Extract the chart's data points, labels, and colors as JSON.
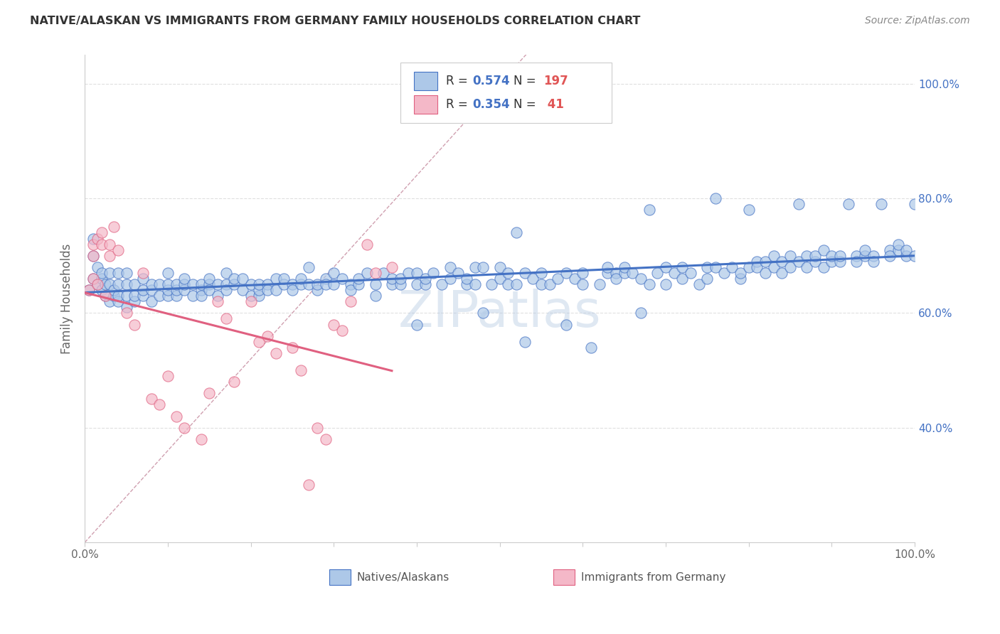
{
  "title": "NATIVE/ALASKAN VS IMMIGRANTS FROM GERMANY FAMILY HOUSEHOLDS CORRELATION CHART",
  "source": "Source: ZipAtlas.com",
  "ylabel": "Family Households",
  "xlim": [
    0,
    1
  ],
  "ylim": [
    0.2,
    1.05
  ],
  "legend_blue_R": "0.574",
  "legend_blue_N": "197",
  "legend_pink_R": "0.354",
  "legend_pink_N": " 41",
  "legend_label_blue": "Natives/Alaskans",
  "legend_label_pink": "Immigrants from Germany",
  "watermark": "ZIPatlas",
  "blue_color": "#adc8e8",
  "pink_color": "#f4b8c8",
  "line_blue": "#4472c4",
  "line_pink": "#e06080",
  "diag_color": "#d0a0b0",
  "grid_color": "#e0e0e0",
  "yticks": [
    0.4,
    0.6,
    0.8,
    1.0
  ],
  "ytick_labels": [
    "40.0%",
    "60.0%",
    "80.0%",
    "100.0%"
  ],
  "xticks": [
    0.0,
    0.1,
    0.2,
    0.3,
    0.4,
    0.5,
    0.6,
    0.7,
    0.8,
    0.9,
    1.0
  ],
  "xtick_labels": [
    "0.0%",
    "",
    "",
    "",
    "",
    "",
    "",
    "",
    "",
    "",
    "100.0%"
  ],
  "blue_scatter": [
    [
      0.005,
      0.64
    ],
    [
      0.01,
      0.66
    ],
    [
      0.01,
      0.7
    ],
    [
      0.01,
      0.73
    ],
    [
      0.015,
      0.65
    ],
    [
      0.015,
      0.68
    ],
    [
      0.02,
      0.64
    ],
    [
      0.02,
      0.66
    ],
    [
      0.02,
      0.67
    ],
    [
      0.025,
      0.63
    ],
    [
      0.025,
      0.65
    ],
    [
      0.03,
      0.62
    ],
    [
      0.03,
      0.65
    ],
    [
      0.03,
      0.67
    ],
    [
      0.035,
      0.63
    ],
    [
      0.035,
      0.64
    ],
    [
      0.04,
      0.62
    ],
    [
      0.04,
      0.63
    ],
    [
      0.04,
      0.65
    ],
    [
      0.04,
      0.67
    ],
    [
      0.05,
      0.61
    ],
    [
      0.05,
      0.63
    ],
    [
      0.05,
      0.65
    ],
    [
      0.05,
      0.67
    ],
    [
      0.06,
      0.62
    ],
    [
      0.06,
      0.63
    ],
    [
      0.06,
      0.65
    ],
    [
      0.07,
      0.63
    ],
    [
      0.07,
      0.64
    ],
    [
      0.07,
      0.66
    ],
    [
      0.08,
      0.62
    ],
    [
      0.08,
      0.64
    ],
    [
      0.08,
      0.65
    ],
    [
      0.09,
      0.63
    ],
    [
      0.09,
      0.65
    ],
    [
      0.1,
      0.63
    ],
    [
      0.1,
      0.64
    ],
    [
      0.1,
      0.65
    ],
    [
      0.1,
      0.67
    ],
    [
      0.11,
      0.63
    ],
    [
      0.11,
      0.64
    ],
    [
      0.11,
      0.65
    ],
    [
      0.12,
      0.64
    ],
    [
      0.12,
      0.65
    ],
    [
      0.12,
      0.66
    ],
    [
      0.13,
      0.63
    ],
    [
      0.13,
      0.65
    ],
    [
      0.14,
      0.64
    ],
    [
      0.14,
      0.65
    ],
    [
      0.14,
      0.63
    ],
    [
      0.15,
      0.65
    ],
    [
      0.15,
      0.66
    ],
    [
      0.15,
      0.64
    ],
    [
      0.16,
      0.65
    ],
    [
      0.16,
      0.63
    ],
    [
      0.17,
      0.65
    ],
    [
      0.17,
      0.67
    ],
    [
      0.17,
      0.64
    ],
    [
      0.18,
      0.65
    ],
    [
      0.18,
      0.66
    ],
    [
      0.19,
      0.64
    ],
    [
      0.19,
      0.66
    ],
    [
      0.2,
      0.63
    ],
    [
      0.2,
      0.65
    ],
    [
      0.21,
      0.63
    ],
    [
      0.21,
      0.64
    ],
    [
      0.21,
      0.65
    ],
    [
      0.22,
      0.65
    ],
    [
      0.22,
      0.64
    ],
    [
      0.23,
      0.66
    ],
    [
      0.23,
      0.64
    ],
    [
      0.24,
      0.65
    ],
    [
      0.24,
      0.66
    ],
    [
      0.25,
      0.65
    ],
    [
      0.25,
      0.64
    ],
    [
      0.26,
      0.65
    ],
    [
      0.26,
      0.66
    ],
    [
      0.27,
      0.68
    ],
    [
      0.27,
      0.65
    ],
    [
      0.28,
      0.64
    ],
    [
      0.28,
      0.65
    ],
    [
      0.29,
      0.66
    ],
    [
      0.29,
      0.65
    ],
    [
      0.3,
      0.65
    ],
    [
      0.3,
      0.67
    ],
    [
      0.31,
      0.66
    ],
    [
      0.32,
      0.65
    ],
    [
      0.32,
      0.64
    ],
    [
      0.33,
      0.65
    ],
    [
      0.33,
      0.66
    ],
    [
      0.34,
      0.67
    ],
    [
      0.35,
      0.63
    ],
    [
      0.35,
      0.65
    ],
    [
      0.36,
      0.67
    ],
    [
      0.37,
      0.65
    ],
    [
      0.37,
      0.66
    ],
    [
      0.38,
      0.65
    ],
    [
      0.38,
      0.66
    ],
    [
      0.39,
      0.67
    ],
    [
      0.4,
      0.58
    ],
    [
      0.4,
      0.65
    ],
    [
      0.4,
      0.67
    ],
    [
      0.41,
      0.65
    ],
    [
      0.41,
      0.66
    ],
    [
      0.42,
      0.67
    ],
    [
      0.43,
      0.65
    ],
    [
      0.44,
      0.66
    ],
    [
      0.44,
      0.68
    ],
    [
      0.45,
      0.67
    ],
    [
      0.46,
      0.65
    ],
    [
      0.46,
      0.66
    ],
    [
      0.47,
      0.68
    ],
    [
      0.47,
      0.65
    ],
    [
      0.48,
      0.6
    ],
    [
      0.48,
      0.68
    ],
    [
      0.49,
      0.65
    ],
    [
      0.5,
      0.66
    ],
    [
      0.5,
      0.68
    ],
    [
      0.51,
      0.67
    ],
    [
      0.51,
      0.65
    ],
    [
      0.52,
      0.74
    ],
    [
      0.52,
      0.65
    ],
    [
      0.53,
      0.55
    ],
    [
      0.53,
      0.67
    ],
    [
      0.54,
      0.66
    ],
    [
      0.55,
      0.65
    ],
    [
      0.55,
      0.67
    ],
    [
      0.56,
      0.65
    ],
    [
      0.57,
      0.66
    ],
    [
      0.58,
      0.58
    ],
    [
      0.58,
      0.67
    ],
    [
      0.59,
      0.66
    ],
    [
      0.6,
      0.65
    ],
    [
      0.6,
      0.67
    ],
    [
      0.61,
      0.54
    ],
    [
      0.62,
      0.65
    ],
    [
      0.63,
      0.67
    ],
    [
      0.63,
      0.68
    ],
    [
      0.64,
      0.67
    ],
    [
      0.64,
      0.66
    ],
    [
      0.65,
      0.67
    ],
    [
      0.65,
      0.68
    ],
    [
      0.66,
      0.67
    ],
    [
      0.67,
      0.66
    ],
    [
      0.67,
      0.6
    ],
    [
      0.68,
      0.78
    ],
    [
      0.68,
      0.65
    ],
    [
      0.69,
      0.67
    ],
    [
      0.7,
      0.68
    ],
    [
      0.7,
      0.65
    ],
    [
      0.71,
      0.67
    ],
    [
      0.72,
      0.66
    ],
    [
      0.72,
      0.68
    ],
    [
      0.73,
      0.67
    ],
    [
      0.74,
      0.65
    ],
    [
      0.75,
      0.68
    ],
    [
      0.75,
      0.66
    ],
    [
      0.76,
      0.8
    ],
    [
      0.76,
      0.68
    ],
    [
      0.77,
      0.67
    ],
    [
      0.78,
      0.68
    ],
    [
      0.79,
      0.66
    ],
    [
      0.79,
      0.67
    ],
    [
      0.8,
      0.78
    ],
    [
      0.8,
      0.68
    ],
    [
      0.81,
      0.69
    ],
    [
      0.81,
      0.68
    ],
    [
      0.82,
      0.67
    ],
    [
      0.82,
      0.69
    ],
    [
      0.83,
      0.68
    ],
    [
      0.83,
      0.7
    ],
    [
      0.84,
      0.67
    ],
    [
      0.84,
      0.69
    ],
    [
      0.85,
      0.68
    ],
    [
      0.85,
      0.7
    ],
    [
      0.86,
      0.79
    ],
    [
      0.86,
      0.69
    ],
    [
      0.87,
      0.68
    ],
    [
      0.87,
      0.7
    ],
    [
      0.88,
      0.69
    ],
    [
      0.88,
      0.7
    ],
    [
      0.89,
      0.68
    ],
    [
      0.89,
      0.71
    ],
    [
      0.9,
      0.69
    ],
    [
      0.9,
      0.7
    ],
    [
      0.91,
      0.69
    ],
    [
      0.91,
      0.7
    ],
    [
      0.92,
      0.79
    ],
    [
      0.93,
      0.7
    ],
    [
      0.93,
      0.69
    ],
    [
      0.94,
      0.7
    ],
    [
      0.94,
      0.71
    ],
    [
      0.95,
      0.7
    ],
    [
      0.95,
      0.69
    ],
    [
      0.96,
      0.79
    ],
    [
      0.97,
      0.71
    ],
    [
      0.97,
      0.7
    ],
    [
      0.98,
      0.71
    ],
    [
      0.98,
      0.72
    ],
    [
      0.99,
      0.7
    ],
    [
      0.99,
      0.71
    ],
    [
      1.0,
      0.7
    ],
    [
      1.0,
      0.79
    ]
  ],
  "pink_scatter": [
    [
      0.005,
      0.64
    ],
    [
      0.01,
      0.66
    ],
    [
      0.01,
      0.7
    ],
    [
      0.01,
      0.72
    ],
    [
      0.015,
      0.65
    ],
    [
      0.015,
      0.73
    ],
    [
      0.02,
      0.72
    ],
    [
      0.02,
      0.74
    ],
    [
      0.025,
      0.63
    ],
    [
      0.03,
      0.7
    ],
    [
      0.03,
      0.72
    ],
    [
      0.035,
      0.75
    ],
    [
      0.04,
      0.71
    ],
    [
      0.05,
      0.6
    ],
    [
      0.06,
      0.58
    ],
    [
      0.07,
      0.67
    ],
    [
      0.08,
      0.45
    ],
    [
      0.09,
      0.44
    ],
    [
      0.1,
      0.49
    ],
    [
      0.11,
      0.42
    ],
    [
      0.12,
      0.4
    ],
    [
      0.14,
      0.38
    ],
    [
      0.15,
      0.46
    ],
    [
      0.16,
      0.62
    ],
    [
      0.17,
      0.59
    ],
    [
      0.18,
      0.48
    ],
    [
      0.2,
      0.62
    ],
    [
      0.21,
      0.55
    ],
    [
      0.22,
      0.56
    ],
    [
      0.23,
      0.53
    ],
    [
      0.25,
      0.54
    ],
    [
      0.26,
      0.5
    ],
    [
      0.27,
      0.3
    ],
    [
      0.28,
      0.4
    ],
    [
      0.29,
      0.38
    ],
    [
      0.3,
      0.58
    ],
    [
      0.31,
      0.57
    ],
    [
      0.32,
      0.62
    ],
    [
      0.34,
      0.72
    ],
    [
      0.35,
      0.67
    ],
    [
      0.37,
      0.68
    ]
  ]
}
